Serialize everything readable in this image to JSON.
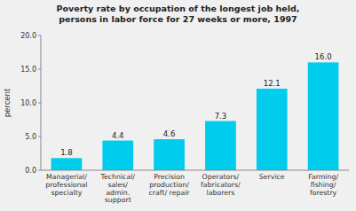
{
  "chart_data": {
    "type": "bar",
    "title": "Poverty rate by occupation of the longest job held,\npersons in labor force for 27 weeks or more, 1997",
    "categories": [
      "Managerial/\nprofessional\nspecialty",
      "Technical/\nsales/\nadmin.\nsupport",
      "Precision\nproduction/\ncraft/ repair",
      "Operators/\nfabricators/\nlaborers",
      "Service",
      "Farming/\nfishing/\nforestry"
    ],
    "values": [
      1.8,
      4.4,
      4.6,
      7.3,
      12.1,
      16.0
    ],
    "value_labels": [
      "1.8",
      "4.4",
      "4.6",
      "7.3",
      "12.1",
      "16.0"
    ],
    "data_labels": true,
    "color": "#00CCEE",
    "ylabel": "percent",
    "ylim": [
      0,
      20.0
    ],
    "yticks": [
      {
        "value": 0.0,
        "label": "0.0"
      },
      {
        "value": 5.0,
        "label": "5.0"
      },
      {
        "value": 10.0,
        "label": "10.0"
      },
      {
        "value": 15.0,
        "label": "15.0"
      },
      {
        "value": 20.0,
        "label": "20.0"
      }
    ],
    "grid": false
  }
}
